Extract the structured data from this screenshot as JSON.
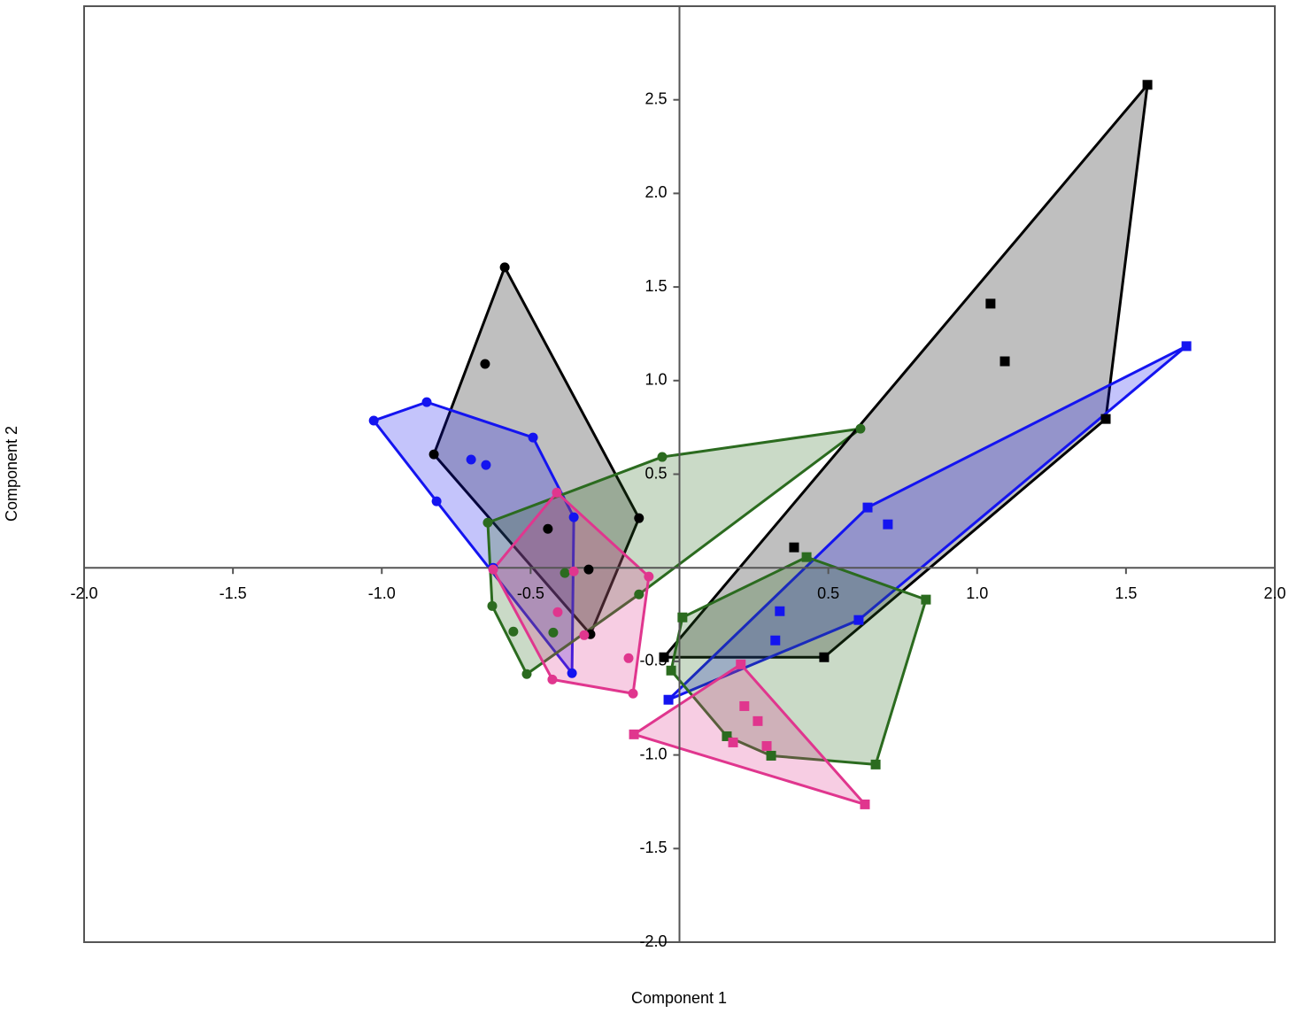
{
  "chart_data": {
    "type": "scatter",
    "x_label": "Component 1",
    "y_label": "Component 2",
    "xlim": [
      -2,
      2
    ],
    "ylim": [
      -2,
      3
    ],
    "xticks": [
      {
        "value": -2,
        "label": "-2.0"
      },
      {
        "value": -1.5,
        "label": "-1.5"
      },
      {
        "value": -1,
        "label": "-1.0"
      },
      {
        "value": -0.5,
        "label": "-0.5"
      },
      {
        "value": 0.5,
        "label": "0.5"
      },
      {
        "value": 1,
        "label": "1.0"
      },
      {
        "value": 1.5,
        "label": "1.5"
      },
      {
        "value": 2,
        "label": "2.0"
      }
    ],
    "yticks": [
      {
        "value": -2,
        "label": "-2.0"
      },
      {
        "value": -1.5,
        "label": "-1.5"
      },
      {
        "value": -1,
        "label": "-1.0"
      },
      {
        "value": -0.5,
        "label": "-0.5"
      },
      {
        "value": 0.5,
        "label": "0.5"
      },
      {
        "value": 1,
        "label": "1.0"
      },
      {
        "value": 1.5,
        "label": "1.5"
      },
      {
        "value": 2,
        "label": "2.0"
      },
      {
        "value": 2.5,
        "label": "2.5"
      }
    ],
    "hulls": true,
    "series": [
      {
        "color": "#000000",
        "marker": "circle",
        "x": [
          -0.587,
          -0.653,
          -0.825,
          -0.136,
          -0.442,
          -0.305,
          -0.299
        ],
        "values": [
          1.605,
          1.089,
          0.606,
          0.265,
          0.208,
          -0.009,
          -0.355
        ]
      },
      {
        "color": "#1414f0",
        "marker": "circle",
        "x": [
          -1.027,
          -0.849,
          -0.492,
          -0.7,
          -0.65,
          -0.816,
          -0.355,
          -0.626,
          -0.361
        ],
        "values": [
          0.786,
          0.885,
          0.696,
          0.578,
          0.549,
          0.355,
          0.27,
          0,
          -0.563
        ]
      },
      {
        "color": "#2b6b1f",
        "marker": "circle",
        "x": [
          -0.058,
          0.608,
          -0.644,
          -0.385,
          -0.136,
          -0.629,
          -0.558,
          -0.424,
          -0.513
        ],
        "values": [
          0.592,
          0.743,
          0.241,
          -0.028,
          -0.142,
          -0.204,
          -0.341,
          -0.346,
          -0.568
        ]
      },
      {
        "color": "#e0368e",
        "marker": "circle",
        "x": [
          -0.412,
          -0.626,
          -0.355,
          -0.103,
          -0.409,
          -0.32,
          -0.171,
          -0.427,
          -0.156
        ],
        "values": [
          0.402,
          -0.009,
          -0.019,
          -0.047,
          -0.237,
          -0.36,
          -0.483,
          -0.597,
          -0.672
        ]
      },
      {
        "color": "#000000",
        "marker": "square",
        "x": [
          1.572,
          1.045,
          1.093,
          1.432,
          0.385,
          0.486,
          -0.052
        ],
        "values": [
          2.58,
          1.411,
          1.103,
          0.795,
          0.109,
          -0.478,
          -0.478
        ]
      },
      {
        "color": "#1414f0",
        "marker": "square",
        "x": [
          1.703,
          0.632,
          0.7,
          0.337,
          0.602,
          0.322,
          -0.037
        ],
        "values": [
          1.184,
          0.322,
          0.232,
          -0.232,
          -0.279,
          -0.388,
          -0.705
        ]
      },
      {
        "color": "#2b6b1f",
        "marker": "square",
        "x": [
          0.427,
          0.828,
          0.01,
          -0.028,
          0.159,
          0.308,
          0.659
        ],
        "values": [
          0.057,
          -0.17,
          -0.265,
          -0.549,
          -0.9,
          -1.004,
          -1.051
        ]
      },
      {
        "color": "#e0368e",
        "marker": "square",
        "x": [
          0.206,
          0.218,
          0.263,
          0.18,
          0.293,
          -0.153,
          0.623
        ],
        "values": [
          -0.516,
          -0.739,
          -0.819,
          -0.933,
          -0.952,
          -0.89,
          -1.264
        ]
      }
    ]
  }
}
